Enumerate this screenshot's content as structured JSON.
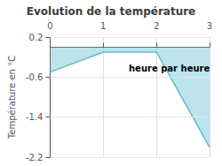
{
  "chart_data": {
    "type": "area",
    "title": "Evolution de la température",
    "ylabel": "Température en °C",
    "annotation": "heure par heure",
    "x": [
      0,
      1,
      2,
      3
    ],
    "values": [
      -0.5,
      -0.1,
      -0.1,
      -2.0
    ],
    "color": "#5bbcd0",
    "xlim": [
      0,
      3
    ],
    "ylim": [
      -2.2,
      0.2
    ],
    "xticks": [
      0,
      1,
      2,
      3
    ],
    "yticks": [
      0.2,
      -0.6,
      -1.4,
      -2.2
    ],
    "grid": true
  }
}
